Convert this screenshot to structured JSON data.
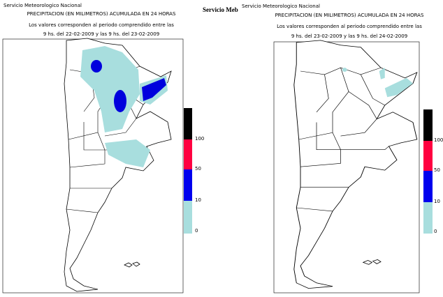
{
  "overlay_text": "Servicio Meb",
  "panels": [
    {
      "agency": "Servicio Meteorologico Nacional",
      "title": "PRECIPITACION (EN MILIMETROS) ACUMULADA EN 24 HORAS",
      "subtitle": "Los valores corresponden al periodo comprendido entre las",
      "period": "9 hs. del 22-02-2009  y las 9 hs. del 23-02-2009",
      "legend": [
        "100",
        "50",
        "10",
        "0"
      ]
    },
    {
      "agency": "Servicio Meteorologico Nacional",
      "title": "PRECIPITACION (EN MILIMETROS) ACUMULADA EN 24 HORAS",
      "subtitle": "Los valores corresponden al periodo comprendido entre las",
      "period": "9 hs. del 23-02-2009  y las 9 hs. del 24-02-2009",
      "legend": [
        "100",
        "50",
        "10",
        "0"
      ]
    }
  ]
}
